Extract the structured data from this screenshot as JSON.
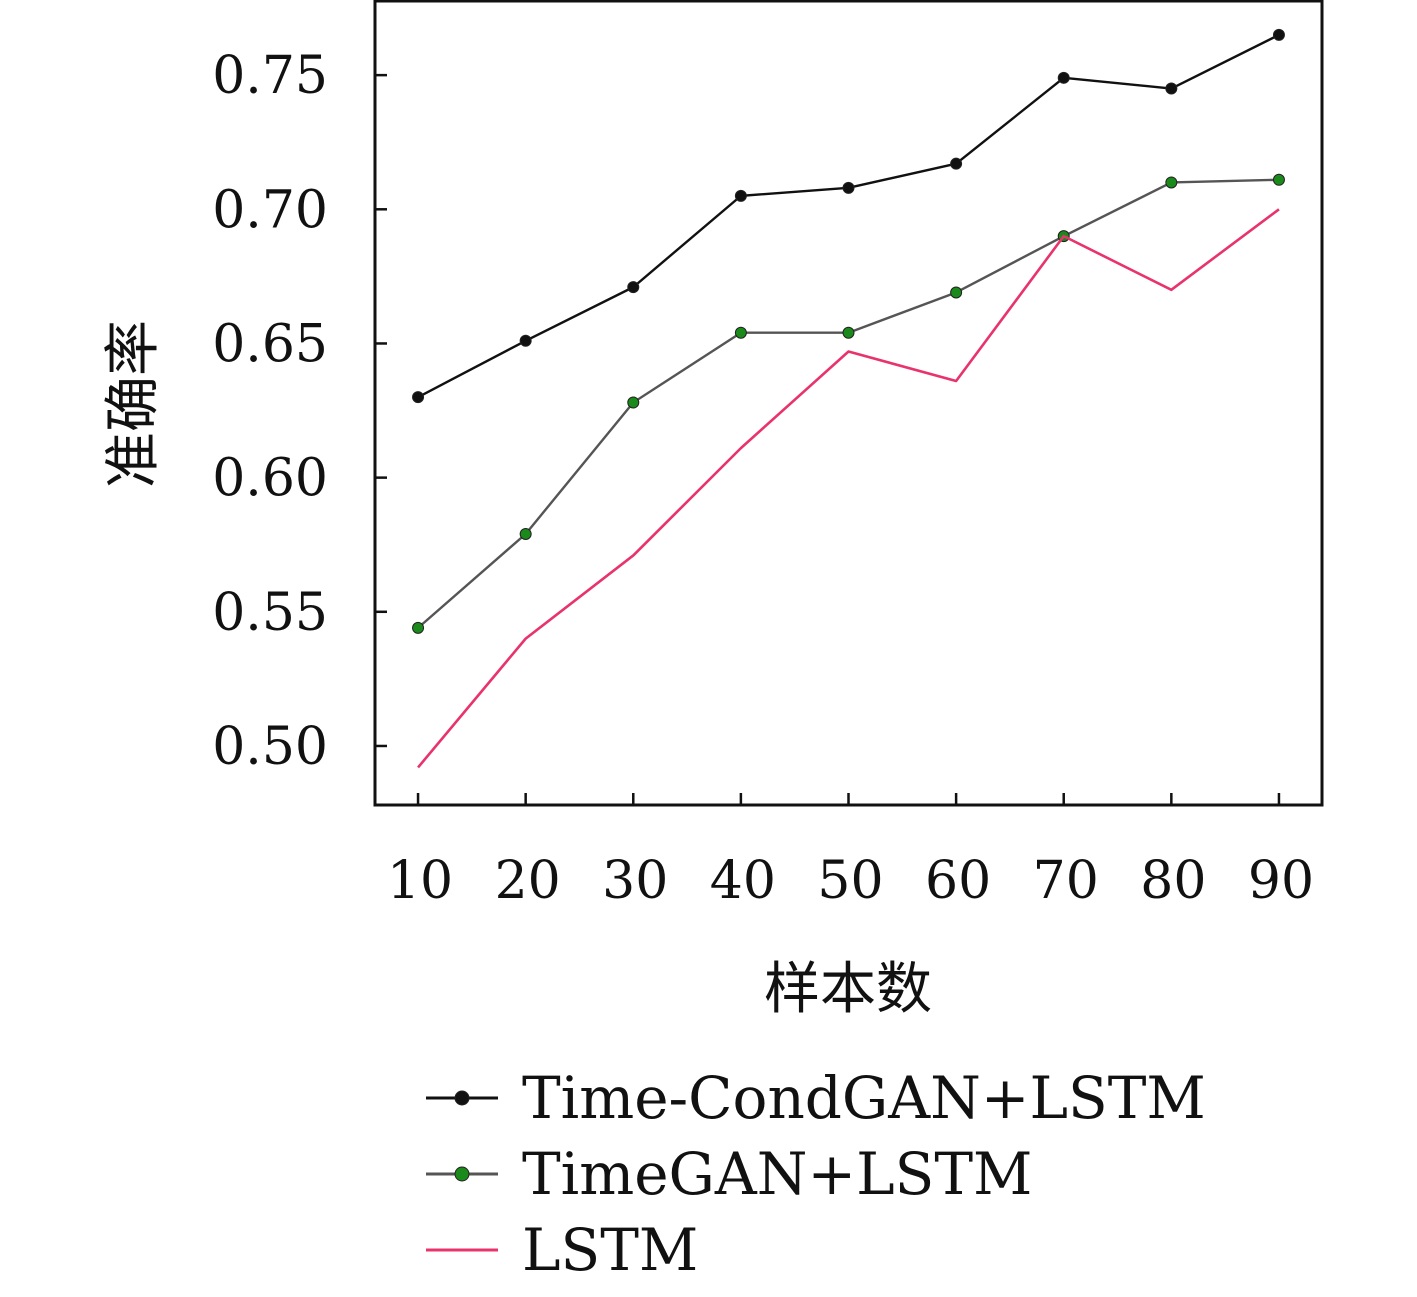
{
  "chart_data": {
    "type": "line",
    "xlabel": "样本数",
    "ylabel": "准确率",
    "x": [
      10,
      20,
      30,
      40,
      50,
      60,
      70,
      80,
      90
    ],
    "xlim": [
      6,
      94
    ],
    "ylim": [
      0.478,
      0.778
    ],
    "yticks": [
      0.5,
      0.55,
      0.6,
      0.65,
      0.7,
      0.75
    ],
    "ytick_labels": [
      "0.50",
      "0.55",
      "0.60",
      "0.65",
      "0.70",
      "0.75"
    ],
    "xtick_labels": [
      "10",
      "20",
      "30",
      "40",
      "50",
      "60",
      "70",
      "80",
      "90"
    ],
    "grid": false,
    "legend_position": "below",
    "series": [
      {
        "name": "Time-CondGAN+LSTM",
        "color": "#111111",
        "marker": "dot",
        "values": [
          0.63,
          0.651,
          0.671,
          0.705,
          0.708,
          0.717,
          0.749,
          0.745,
          0.765
        ]
      },
      {
        "name": "TimeGAN+LSTM",
        "color": "#1a8a1a",
        "line_color": "#555555",
        "marker": "dot",
        "values": [
          0.544,
          0.579,
          0.628,
          0.654,
          0.654,
          0.669,
          0.69,
          0.71,
          0.711
        ]
      },
      {
        "name": "LSTM",
        "color": "#e8336d",
        "marker": "none",
        "values": [
          0.492,
          0.54,
          0.571,
          0.611,
          0.647,
          0.636,
          0.69,
          0.67,
          0.7
        ]
      }
    ]
  }
}
